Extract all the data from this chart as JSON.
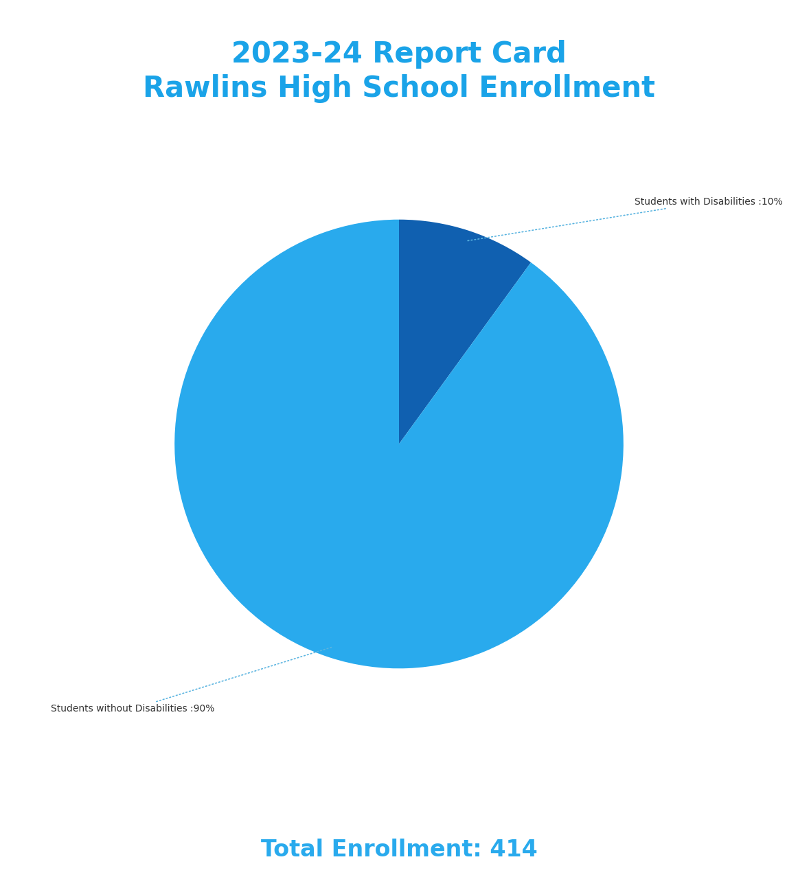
{
  "title_line1": "2023-24 Report Card",
  "title_line2": "Rawlins High School Enrollment",
  "title_color": "#1aa3e8",
  "title_fontsize": 30,
  "slices": [
    10,
    90
  ],
  "labels": [
    "Students with Disabilities :10%",
    "Students without Disabilities :90%"
  ],
  "colors": [
    "#1060b0",
    "#29aaed"
  ],
  "startangle": 90,
  "label_color": "#333333",
  "label_fontsize": 10,
  "total_enrollment_text": "Total Enrollment: 414",
  "total_enrollment_color": "#29aaed",
  "total_enrollment_fontsize": 24,
  "background_color": "#ffffff"
}
